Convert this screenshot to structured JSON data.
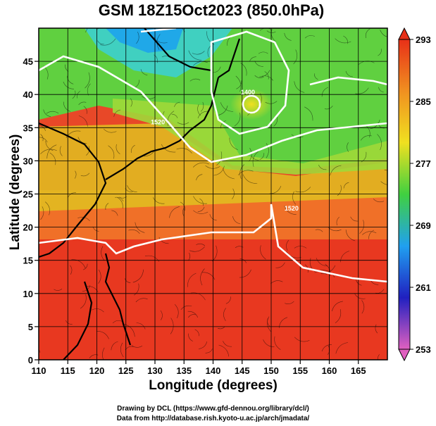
{
  "title": "GSM 18Z15Oct2023 (850.0hPa)",
  "x_axis": {
    "label": "Longitude (degrees)",
    "range": [
      110,
      170
    ],
    "ticks": [
      110,
      115,
      120,
      125,
      130,
      135,
      140,
      145,
      150,
      155,
      160,
      165
    ]
  },
  "y_axis": {
    "label": "Latitude  (degrees)",
    "range": [
      0,
      50
    ],
    "ticks": [
      0,
      5,
      10,
      15,
      20,
      25,
      30,
      35,
      40,
      45
    ]
  },
  "colorbar": {
    "range": [
      253,
      293
    ],
    "ticks": [
      253,
      261,
      269,
      277,
      285,
      293
    ],
    "colors": [
      "#e060c0",
      "#2020c0",
      "#20a0f0",
      "#40d040",
      "#f0e020",
      "#f09020",
      "#e83018"
    ]
  },
  "contour_labels": [
    {
      "text": "1520",
      "lon": 130.5,
      "lat": 35.5
    },
    {
      "text": "1520",
      "lon": 153.5,
      "lat": 22.5
    },
    {
      "text": "1400",
      "lon": 146,
      "lat": 40
    }
  ],
  "credits": {
    "line1": "Drawing by DCL (https://www.gfd-dennou.org/library/dcl/)",
    "line2": "Data from http://database.rish.kyoto-u.ac.jp/arch/jmadata/"
  }
}
